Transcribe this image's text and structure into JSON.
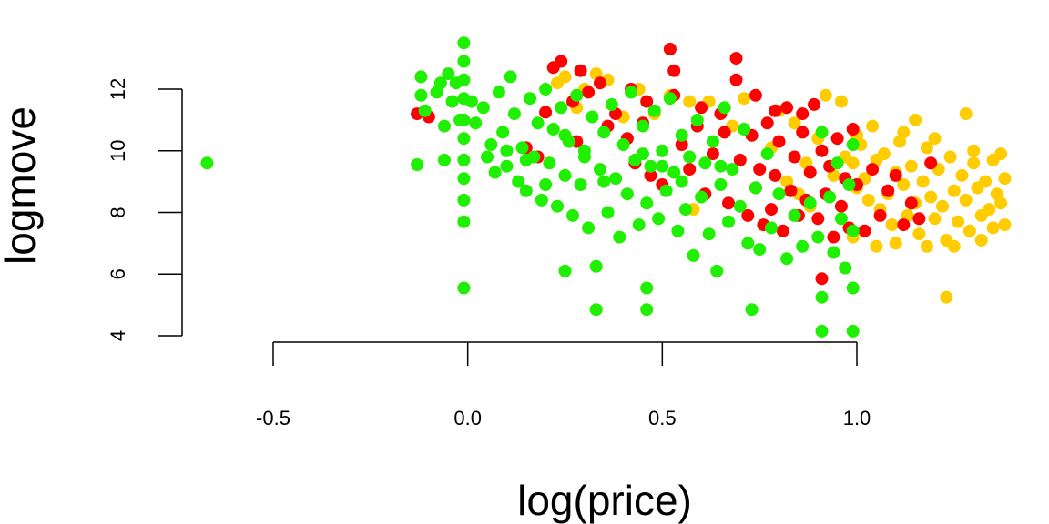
{
  "chart_data": {
    "type": "scatter",
    "title": "",
    "xlabel": "log(price)",
    "ylabel": "logmove",
    "xlim": [
      -0.74,
      1.38
    ],
    "ylim": [
      3.95,
      13.6
    ],
    "xticks": [
      -0.5,
      0.0,
      0.5,
      1.0
    ],
    "xtick_labels": [
      "-0.5",
      "0.0",
      "0.5",
      "1.0"
    ],
    "yticks": [
      4,
      6,
      8,
      10,
      12
    ],
    "ytick_labels": [
      "4",
      "6",
      "8",
      "10",
      "12"
    ],
    "grid": false,
    "legend": "none",
    "series": [
      {
        "color": "#FFCC00",
        "points": [
          [
            0.99,
            9.6
          ],
          [
            1.0,
            8.8
          ],
          [
            1.01,
            10.2
          ],
          [
            1.02,
            9.1
          ],
          [
            1.03,
            8.4
          ],
          [
            1.05,
            9.7
          ],
          [
            1.06,
            8.1
          ],
          [
            1.07,
            9.9
          ],
          [
            1.08,
            8.6
          ],
          [
            1.09,
            7.6
          ],
          [
            1.1,
            9.3
          ],
          [
            1.11,
            10.3
          ],
          [
            1.12,
            8.9
          ],
          [
            1.13,
            7.9
          ],
          [
            1.14,
            9.5
          ],
          [
            1.15,
            8.3
          ],
          [
            1.16,
            7.3
          ],
          [
            1.17,
            9.0
          ],
          [
            1.18,
            10.1
          ],
          [
            1.19,
            8.5
          ],
          [
            1.2,
            7.8
          ],
          [
            1.21,
            9.4
          ],
          [
            1.22,
            8.2
          ],
          [
            1.23,
            5.25
          ],
          [
            1.23,
            7.1
          ],
          [
            1.24,
            9.8
          ],
          [
            1.25,
            8.7
          ],
          [
            1.26,
            7.7
          ],
          [
            1.27,
            9.2
          ],
          [
            1.28,
            11.2
          ],
          [
            1.28,
            8.4
          ],
          [
            1.29,
            7.4
          ],
          [
            1.3,
            9.6
          ],
          [
            1.31,
            8.8
          ],
          [
            1.32,
            7.9
          ],
          [
            1.33,
            9.0
          ],
          [
            1.34,
            8.1
          ],
          [
            1.35,
            7.5
          ],
          [
            1.35,
            9.7
          ],
          [
            1.36,
            8.6
          ],
          [
            1.37,
            9.9
          ],
          [
            1.37,
            8.3
          ],
          [
            1.38,
            7.6
          ],
          [
            1.38,
            9.1
          ],
          [
            1.15,
            11.0
          ],
          [
            1.04,
            10.8
          ],
          [
            0.97,
            9.8
          ],
          [
            0.94,
            9.2
          ],
          [
            0.9,
            10.4
          ],
          [
            0.87,
            9.6
          ],
          [
            0.84,
            10.9
          ],
          [
            0.8,
            11.3
          ],
          [
            0.78,
            10.1
          ],
          [
            0.75,
            9.4
          ],
          [
            0.71,
            11.7
          ],
          [
            0.68,
            10.8
          ],
          [
            0.62,
            11.6
          ],
          [
            0.57,
            11.6
          ],
          [
            0.52,
            11.8
          ],
          [
            0.48,
            11.2
          ],
          [
            0.44,
            12.0
          ],
          [
            0.4,
            11.1
          ],
          [
            0.36,
            12.3
          ],
          [
            0.33,
            12.5
          ],
          [
            0.3,
            12.0
          ],
          [
            0.28,
            11.4
          ],
          [
            0.25,
            12.4
          ],
          [
            0.23,
            12.2
          ],
          [
            0.92,
            11.8
          ],
          [
            0.96,
            11.6
          ],
          [
            1.0,
            10.5
          ],
          [
            1.12,
            10.6
          ],
          [
            1.2,
            10.4
          ],
          [
            1.3,
            10.0
          ],
          [
            0.99,
            7.2
          ],
          [
            1.05,
            6.9
          ],
          [
            1.1,
            7.0
          ],
          [
            1.18,
            6.9
          ],
          [
            1.25,
            6.9
          ],
          [
            1.32,
            7.1
          ],
          [
            0.88,
            8.2
          ],
          [
            0.85,
            8.6
          ],
          [
            0.82,
            9.0
          ],
          [
            0.58,
            8.1
          ]
        ]
      },
      {
        "color": "#FF0000",
        "points": [
          [
            -0.13,
            11.2
          ],
          [
            -0.1,
            11.1
          ],
          [
            0.2,
            11.25
          ],
          [
            0.15,
            10.1
          ],
          [
            0.22,
            12.7
          ],
          [
            0.24,
            12.9
          ],
          [
            0.27,
            11.6
          ],
          [
            0.29,
            12.6
          ],
          [
            0.31,
            11.9
          ],
          [
            0.34,
            12.2
          ],
          [
            0.36,
            10.8
          ],
          [
            0.38,
            11.2
          ],
          [
            0.41,
            10.4
          ],
          [
            0.43,
            9.6
          ],
          [
            0.45,
            10.9
          ],
          [
            0.47,
            9.2
          ],
          [
            0.5,
            8.9
          ],
          [
            0.52,
            13.3
          ],
          [
            0.53,
            12.6
          ],
          [
            0.53,
            11.8
          ],
          [
            0.55,
            10.2
          ],
          [
            0.57,
            9.4
          ],
          [
            0.59,
            10.8
          ],
          [
            0.61,
            8.6
          ],
          [
            0.63,
            9.9
          ],
          [
            0.65,
            11.2
          ],
          [
            0.67,
            8.3
          ],
          [
            0.69,
            13.0
          ],
          [
            0.69,
            12.3
          ],
          [
            0.7,
            9.7
          ],
          [
            0.72,
            7.9
          ],
          [
            0.73,
            10.5
          ],
          [
            0.74,
            8.8
          ],
          [
            0.75,
            9.4
          ],
          [
            0.76,
            7.6
          ],
          [
            0.77,
            10.9
          ],
          [
            0.78,
            8.1
          ],
          [
            0.79,
            9.2
          ],
          [
            0.8,
            10.3
          ],
          [
            0.81,
            7.4
          ],
          [
            0.82,
            11.4
          ],
          [
            0.83,
            8.7
          ],
          [
            0.84,
            9.8
          ],
          [
            0.85,
            7.9
          ],
          [
            0.86,
            10.6
          ],
          [
            0.87,
            8.4
          ],
          [
            0.88,
            9.3
          ],
          [
            0.89,
            11.5
          ],
          [
            0.9,
            7.8
          ],
          [
            0.91,
            10.0
          ],
          [
            0.91,
            5.85
          ],
          [
            0.92,
            8.6
          ],
          [
            0.93,
            9.5
          ],
          [
            0.94,
            7.2
          ],
          [
            0.95,
            10.4
          ],
          [
            0.96,
            8.2
          ],
          [
            0.97,
            9.1
          ],
          [
            0.98,
            7.5
          ],
          [
            0.99,
            10.7
          ],
          [
            1.0,
            8.9
          ],
          [
            1.02,
            7.4
          ],
          [
            1.04,
            9.4
          ],
          [
            1.06,
            7.9
          ],
          [
            1.08,
            8.7
          ],
          [
            1.1,
            9.2
          ],
          [
            1.12,
            7.6
          ],
          [
            1.14,
            8.3
          ],
          [
            1.16,
            7.8
          ],
          [
            1.19,
            9.6
          ],
          [
            0.74,
            11.8
          ],
          [
            0.79,
            11.3
          ],
          [
            0.86,
            11.2
          ],
          [
            0.6,
            11.4
          ],
          [
            0.66,
            10.6
          ],
          [
            0.46,
            11.6
          ],
          [
            0.42,
            12.0
          ],
          [
            0.28,
            10.3
          ],
          [
            0.18,
            9.8
          ]
        ]
      },
      {
        "color": "#1FEF00",
        "points": [
          [
            -0.67,
            9.6
          ],
          [
            -0.13,
            9.55
          ],
          [
            -0.12,
            12.4
          ],
          [
            -0.12,
            11.8
          ],
          [
            -0.11,
            11.3
          ],
          [
            -0.08,
            11.9
          ],
          [
            -0.07,
            12.2
          ],
          [
            -0.06,
            10.8
          ],
          [
            -0.06,
            9.7
          ],
          [
            -0.05,
            12.5
          ],
          [
            -0.04,
            11.6
          ],
          [
            -0.03,
            12.2
          ],
          [
            -0.02,
            11.0
          ],
          [
            -0.01,
            13.5
          ],
          [
            -0.01,
            12.9
          ],
          [
            -0.01,
            12.3
          ],
          [
            -0.01,
            11.7
          ],
          [
            -0.01,
            11.0
          ],
          [
            -0.01,
            10.4
          ],
          [
            -0.01,
            9.7
          ],
          [
            -0.01,
            9.1
          ],
          [
            -0.01,
            8.4
          ],
          [
            -0.01,
            7.7
          ],
          [
            -0.01,
            5.55
          ],
          [
            0.01,
            11.6
          ],
          [
            0.02,
            10.9
          ],
          [
            0.04,
            11.4
          ],
          [
            0.05,
            9.8
          ],
          [
            0.06,
            10.2
          ],
          [
            0.07,
            9.3
          ],
          [
            0.08,
            11.9
          ],
          [
            0.09,
            10.6
          ],
          [
            0.1,
            9.5
          ],
          [
            0.11,
            12.4
          ],
          [
            0.12,
            11.2
          ],
          [
            0.13,
            9.0
          ],
          [
            0.14,
            10.1
          ],
          [
            0.15,
            8.7
          ],
          [
            0.16,
            11.7
          ],
          [
            0.17,
            9.8
          ],
          [
            0.18,
            10.9
          ],
          [
            0.19,
            8.4
          ],
          [
            0.2,
            12.0
          ],
          [
            0.21,
            9.6
          ],
          [
            0.22,
            10.7
          ],
          [
            0.23,
            8.2
          ],
          [
            0.24,
            11.4
          ],
          [
            0.25,
            9.2
          ],
          [
            0.25,
            6.1
          ],
          [
            0.26,
            10.3
          ],
          [
            0.27,
            7.9
          ],
          [
            0.28,
            11.8
          ],
          [
            0.29,
            8.9
          ],
          [
            0.3,
            10.0
          ],
          [
            0.31,
            7.5
          ],
          [
            0.32,
            11.1
          ],
          [
            0.33,
            4.85
          ],
          [
            0.33,
            6.25
          ],
          [
            0.34,
            9.4
          ],
          [
            0.35,
            10.6
          ],
          [
            0.36,
            8.0
          ],
          [
            0.37,
            11.5
          ],
          [
            0.38,
            9.1
          ],
          [
            0.39,
            7.2
          ],
          [
            0.4,
            10.2
          ],
          [
            0.41,
            8.6
          ],
          [
            0.42,
            11.9
          ],
          [
            0.43,
            9.7
          ],
          [
            0.44,
            7.6
          ],
          [
            0.45,
            10.8
          ],
          [
            0.46,
            8.3
          ],
          [
            0.46,
            4.85
          ],
          [
            0.46,
            5.55
          ],
          [
            0.47,
            9.5
          ],
          [
            0.48,
            11.3
          ],
          [
            0.49,
            7.8
          ],
          [
            0.5,
            10.0
          ],
          [
            0.51,
            8.7
          ],
          [
            0.52,
            11.7
          ],
          [
            0.53,
            9.3
          ],
          [
            0.54,
            7.4
          ],
          [
            0.55,
            10.5
          ],
          [
            0.56,
            8.1
          ],
          [
            0.57,
            9.8
          ],
          [
            0.58,
            6.6
          ],
          [
            0.59,
            11.0
          ],
          [
            0.6,
            8.5
          ],
          [
            0.61,
            9.6
          ],
          [
            0.62,
            7.3
          ],
          [
            0.63,
            10.3
          ],
          [
            0.64,
            6.1
          ],
          [
            0.65,
            8.9
          ],
          [
            0.66,
            11.4
          ],
          [
            0.67,
            7.7
          ],
          [
            0.68,
            9.4
          ],
          [
            0.7,
            8.2
          ],
          [
            0.71,
            10.7
          ],
          [
            0.72,
            7.0
          ],
          [
            0.73,
            4.85
          ],
          [
            0.74,
            8.8
          ],
          [
            0.75,
            6.8
          ],
          [
            0.77,
            9.9
          ],
          [
            0.78,
            7.5
          ],
          [
            0.8,
            8.6
          ],
          [
            0.82,
            6.5
          ],
          [
            0.84,
            7.9
          ],
          [
            0.86,
            6.9
          ],
          [
            0.88,
            8.3
          ],
          [
            0.9,
            7.2
          ],
          [
            0.91,
            10.6
          ],
          [
            0.91,
            5.25
          ],
          [
            0.91,
            4.15
          ],
          [
            0.93,
            8.5
          ],
          [
            0.94,
            6.7
          ],
          [
            0.95,
            9.6
          ],
          [
            0.96,
            7.8
          ],
          [
            0.97,
            6.2
          ],
          [
            0.98,
            8.9
          ],
          [
            0.99,
            5.55
          ],
          [
            0.99,
            4.15
          ],
          [
            0.99,
            10.2
          ],
          [
            0.99,
            7.4
          ],
          [
            0.2,
            8.9
          ],
          [
            0.35,
            9.0
          ],
          [
            0.55,
            9.0
          ],
          [
            0.1,
            10.0
          ],
          [
            0.3,
            9.8
          ],
          [
            0.5,
            9.5
          ],
          [
            0.65,
            9.5
          ],
          [
            0.45,
            9.9
          ],
          [
            0.25,
            10.5
          ],
          [
            0.15,
            9.7
          ]
        ]
      }
    ]
  }
}
